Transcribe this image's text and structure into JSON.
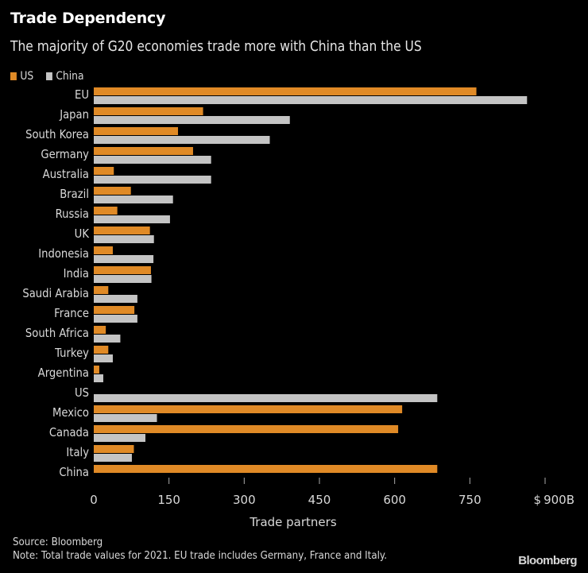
{
  "chart_data": {
    "type": "bar",
    "orientation": "horizontal",
    "title": "Trade Dependency",
    "subtitle": "The majority of G20 economies trade more with China than the US",
    "xlabel": "Trade partners",
    "ylabel": "",
    "xlim": [
      0,
      900
    ],
    "ticks": [
      0,
      150,
      300,
      450,
      600,
      750,
      900
    ],
    "tick_labels": [
      "0",
      "150",
      "300",
      "450",
      "600",
      "750",
      "$ 900B"
    ],
    "grid": false,
    "legend_position": "top-left",
    "categories": [
      "EU",
      "Japan",
      "South Korea",
      "Germany",
      "Australia",
      "Brazil",
      "Russia",
      "UK",
      "Indonesia",
      "India",
      "Saudi Arabia",
      "France",
      "South Africa",
      "Turkey",
      "Argentina",
      "US",
      "Mexico",
      "Canada",
      "Italy",
      "China"
    ],
    "series": [
      {
        "name": "US",
        "color": "#e08a26",
        "values": [
          763,
          218,
          168,
          198,
          40,
          74,
          47,
          112,
          38,
          114,
          29,
          81,
          24,
          29,
          11,
          null,
          615,
          607,
          80,
          685
        ]
      },
      {
        "name": "China",
        "color": "#c4c4c4",
        "values": [
          864,
          391,
          351,
          234,
          234,
          158,
          152,
          120,
          119,
          115,
          87,
          87,
          53,
          38,
          19,
          685,
          126,
          103,
          76,
          null
        ]
      }
    ]
  },
  "footer": {
    "source": "Source: Bloomberg",
    "note": "Note: Total trade values for 2021. EU trade includes Germany, France and Italy.",
    "logo": "Bloomberg"
  }
}
